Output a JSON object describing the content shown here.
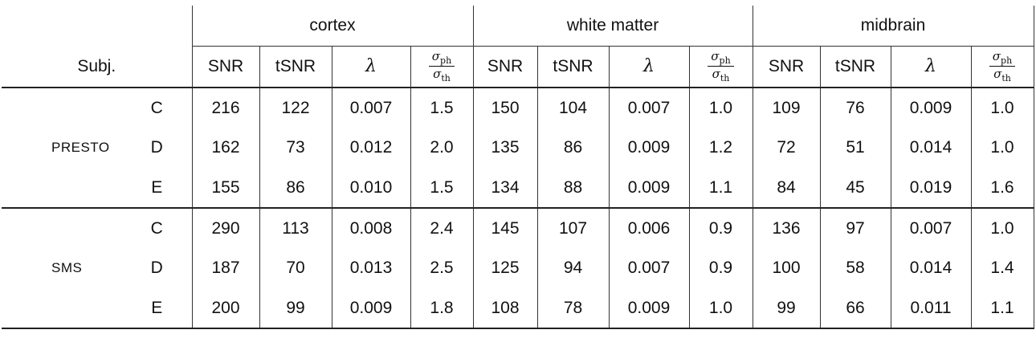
{
  "table": {
    "stub_header": "Subj.",
    "column_groups": [
      {
        "label": "cortex"
      },
      {
        "label": "white matter"
      },
      {
        "label": "midbrain"
      }
    ],
    "sub_columns": {
      "snr": "SNR",
      "tsnr": "tSNR",
      "lambda": "λ"
    },
    "math": {
      "sigma": "σ",
      "ph": "ph",
      "th": "th"
    },
    "metrics": [
      "snr",
      "tsnr",
      "lambda",
      "sigma_ph_over_sigma_th"
    ],
    "regions": [
      "cortex",
      "white_matter",
      "midbrain"
    ],
    "row_groups": [
      {
        "label": "PRESTO",
        "rows": [
          {
            "subject": "C",
            "cortex": [
              "216",
              "122",
              "0.007",
              "1.5"
            ],
            "white_matter": [
              "150",
              "104",
              "0.007",
              "1.0"
            ],
            "midbrain": [
              "109",
              "76",
              "0.009",
              "1.0"
            ]
          },
          {
            "subject": "D",
            "cortex": [
              "162",
              "73",
              "0.012",
              "2.0"
            ],
            "white_matter": [
              "135",
              "86",
              "0.009",
              "1.2"
            ],
            "midbrain": [
              "72",
              "51",
              "0.014",
              "1.0"
            ]
          },
          {
            "subject": "E",
            "cortex": [
              "155",
              "86",
              "0.010",
              "1.5"
            ],
            "white_matter": [
              "134",
              "88",
              "0.009",
              "1.1"
            ],
            "midbrain": [
              "84",
              "45",
              "0.019",
              "1.6"
            ]
          }
        ]
      },
      {
        "label": "SMS",
        "rows": [
          {
            "subject": "C",
            "cortex": [
              "290",
              "113",
              "0.008",
              "2.4"
            ],
            "white_matter": [
              "145",
              "107",
              "0.006",
              "0.9"
            ],
            "midbrain": [
              "136",
              "97",
              "0.007",
              "1.0"
            ]
          },
          {
            "subject": "D",
            "cortex": [
              "187",
              "70",
              "0.013",
              "2.5"
            ],
            "white_matter": [
              "125",
              "94",
              "0.007",
              "0.9"
            ],
            "midbrain": [
              "100",
              "58",
              "0.014",
              "1.4"
            ]
          },
          {
            "subject": "E",
            "cortex": [
              "200",
              "99",
              "0.009",
              "1.8"
            ],
            "white_matter": [
              "108",
              "78",
              "0.009",
              "1.0"
            ],
            "midbrain": [
              "99",
              "66",
              "0.011",
              "1.1"
            ]
          }
        ]
      }
    ],
    "line_color": "#333333"
  }
}
